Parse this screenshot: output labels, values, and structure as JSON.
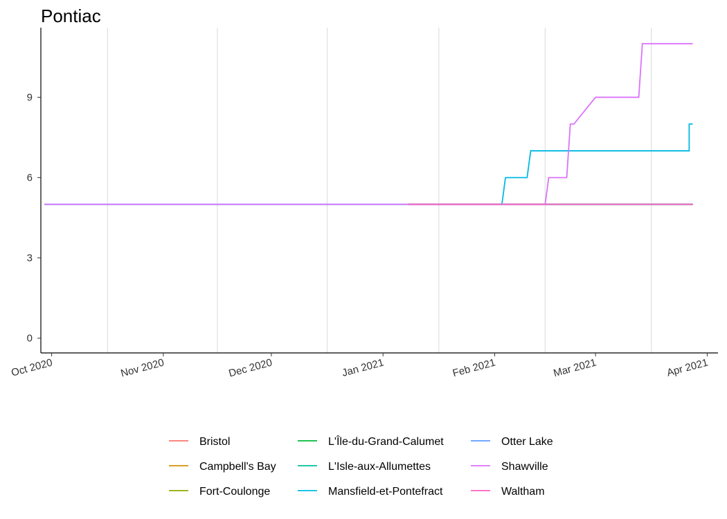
{
  "chart_data": {
    "type": "line",
    "title": "Pontiac",
    "xlabel": "",
    "ylabel": "",
    "x_ticks": [
      "Oct 2020",
      "Nov 2020",
      "Dec 2020",
      "Jan 2021",
      "Feb 2021",
      "Mar 2021",
      "Apr 2021"
    ],
    "xlim": [
      "2020-09-28",
      "2021-04-04"
    ],
    "y_ticks": [
      0,
      3,
      6,
      9
    ],
    "ylim": [
      -0.55,
      11.6
    ],
    "grid": "vertical-minor",
    "legend_position": "bottom",
    "series": [
      {
        "name": "Bristol",
        "color": "#F8766D",
        "x": [
          "2021-01-08",
          "2021-03-28"
        ],
        "values": [
          5,
          5
        ]
      },
      {
        "name": "Campbell's Bay",
        "color": "#D39200",
        "x": [
          "2021-01-08",
          "2021-03-28"
        ],
        "values": [
          5,
          5
        ]
      },
      {
        "name": "Fort-Coulonge",
        "color": "#93AA00",
        "x": [
          "2021-01-08",
          "2021-03-28"
        ],
        "values": [
          5,
          5
        ]
      },
      {
        "name": "L'Île-du-Grand-Calumet",
        "color": "#00BA38",
        "x": [
          "2021-01-08",
          "2021-03-28"
        ],
        "values": [
          5,
          5
        ]
      },
      {
        "name": "L'Isle-aux-Allumettes",
        "color": "#00C19F",
        "x": [
          "2021-01-08",
          "2021-03-28"
        ],
        "values": [
          5,
          5
        ]
      },
      {
        "name": "Mansfield-et-Pontefract",
        "color": "#00B9E3",
        "x": [
          "2020-09-29",
          "2021-02-03",
          "2021-02-04",
          "2021-02-10",
          "2021-02-11",
          "2021-03-27",
          "2021-03-27",
          "2021-03-28"
        ],
        "values": [
          5,
          5,
          6,
          6,
          7,
          7,
          8,
          8
        ]
      },
      {
        "name": "Otter Lake",
        "color": "#619CFF",
        "x": [
          "2021-01-08",
          "2021-03-28"
        ],
        "values": [
          5,
          5
        ]
      },
      {
        "name": "Shawville",
        "color": "#DB72FB",
        "x": [
          "2020-09-29",
          "2021-02-15",
          "2021-02-16",
          "2021-02-21",
          "2021-02-22",
          "2021-02-23",
          "2021-03-01",
          "2021-03-13",
          "2021-03-14",
          "2021-03-28"
        ],
        "values": [
          5,
          5,
          6,
          6,
          8,
          8,
          9,
          9,
          11,
          11
        ]
      },
      {
        "name": "Waltham",
        "color": "#FF61C3",
        "x": [
          "2021-01-08",
          "2021-03-28"
        ],
        "values": [
          5,
          5
        ]
      }
    ]
  }
}
